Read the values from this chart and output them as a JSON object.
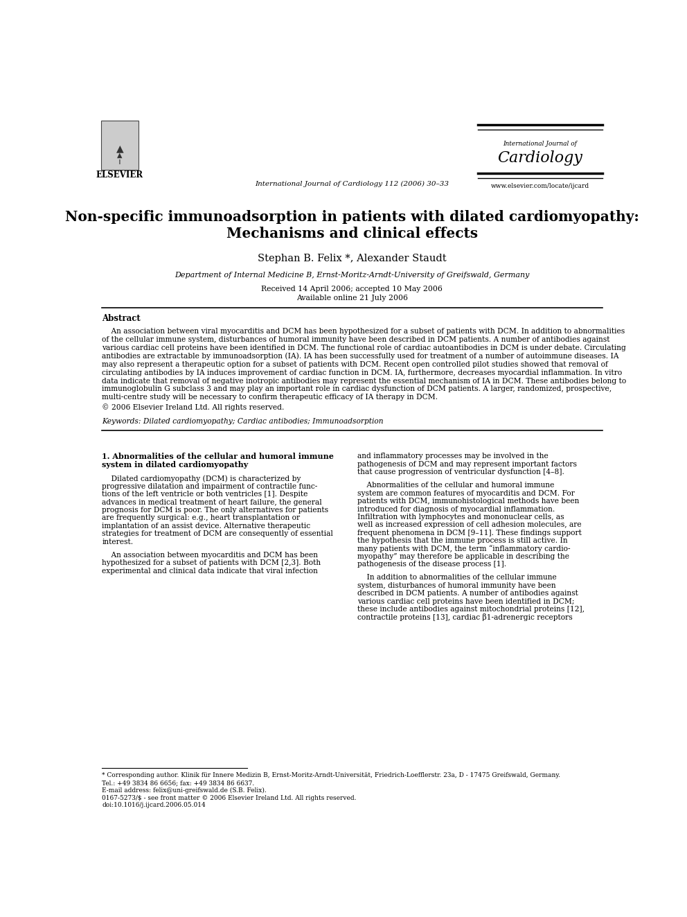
{
  "bg_color": "#ffffff",
  "page_width": 9.92,
  "page_height": 13.23,
  "header": {
    "elsevier_logo_text": "ELSEVIER",
    "journal_center_text": "International Journal of Cardiology 112 (2006) 30–33",
    "journal_name_small": "International Journal of",
    "journal_name_large": "Cardiology",
    "journal_url": "www.elsevier.com/locate/ijcard"
  },
  "title_line1": "Non-specific immunoadsorption in patients with dilated cardiomyopathy:",
  "title_line2": "Mechanisms and clinical effects",
  "authors": "Stephan B. Felix *, Alexander Staudt",
  "affiliation": "Department of Internal Medicine B, Ernst-Moritz-Arndt-University of Greifswald, Germany",
  "received": "Received 14 April 2006; accepted 10 May 2006",
  "available": "Available online 21 July 2006",
  "abstract_title": "Abstract",
  "copyright": "© 2006 Elsevier Ireland Ltd. All rights reserved.",
  "keywords_label": "Keywords:",
  "keywords_text": "Dilated cardiomyopathy; Cardiac antibodies; Immunoadsorption",
  "section1_title_line1": "1. Abnormalities of the cellular and humoral immune",
  "section1_title_line2": "system in dilated cardiomyopathy",
  "abstract_lines": [
    "    An association between viral myocarditis and DCM has been hypothesized for a subset of patients with DCM. In addition to abnormalities",
    "of the cellular immune system, disturbances of humoral immunity have been described in DCM patients. A number of antibodies against",
    "various cardiac cell proteins have been identified in DCM. The functional role of cardiac autoantibodies in DCM is under debate. Circulating",
    "antibodies are extractable by immunoadsorption (IA). IA has been successfully used for treatment of a number of autoimmune diseases. IA",
    "may also represent a therapeutic option for a subset of patients with DCM. Recent open controlled pilot studies showed that removal of",
    "circulating antibodies by IA induces improvement of cardiac function in DCM. IA, furthermore, decreases myocardial inflammation. In vitro",
    "data indicate that removal of negative inotropic antibodies may represent the essential mechanism of IA in DCM. These antibodies belong to",
    "immunoglobulin G subclass 3 and may play an important role in cardiac dysfunction of DCM patients. A larger, randomized, prospective,",
    "multi-centre study will be necessary to confirm therapeutic efficacy of IA therapy in DCM."
  ],
  "col1p1_lines": [
    "    Dilated cardiomyopathy (DCM) is characterized by",
    "progressive dilatation and impairment of contractile func-",
    "tions of the left ventricle or both ventricles [1]. Despite",
    "advances in medical treatment of heart failure, the general",
    "prognosis for DCM is poor. The only alternatives for patients",
    "are frequently surgical: e.g., heart transplantation or",
    "implantation of an assist device. Alternative therapeutic",
    "strategies for treatment of DCM are consequently of essential",
    "interest."
  ],
  "col1p2_lines": [
    "    An association between myocarditis and DCM has been",
    "hypothesized for a subset of patients with DCM [2,3]. Both",
    "experimental and clinical data indicate that viral infection"
  ],
  "col2p1_lines": [
    "and inflammatory processes may be involved in the",
    "pathogenesis of DCM and may represent important factors",
    "that cause progression of ventricular dysfunction [4–8]."
  ],
  "col2p2_lines": [
    "    Abnormalities of the cellular and humoral immune",
    "system are common features of myocarditis and DCM. For",
    "patients with DCM, immunohistological methods have been",
    "introduced for diagnosis of myocardial inflammation.",
    "Infiltration with lymphocytes and mononuclear cells, as",
    "well as increased expression of cell adhesion molecules, are",
    "frequent phenomena in DCM [9–11]. These findings support",
    "the hypothesis that the immune process is still active. In",
    "many patients with DCM, the term “inflammatory cardio-",
    "myopathy” may therefore be applicable in describing the",
    "pathogenesis of the disease process [1]."
  ],
  "col2p3_lines": [
    "    In addition to abnormalities of the cellular immune",
    "system, disturbances of humoral immunity have been",
    "described in DCM patients. A number of antibodies against",
    "various cardiac cell proteins have been identified in DCM;",
    "these include antibodies against mitochondrial proteins [12],",
    "contractile proteins [13], cardiac β1-adrenergic receptors"
  ],
  "footnote_star": "* Corresponding author. Klinik für Innere Medizin B, Ernst-Moritz-Arndt-Universität, Friedrich-Loefflerstr. 23a, D - 17475 Greifswald, Germany.",
  "footnote_star2": "Tel.: +49 3834 86 6656; fax: +49 3834 86 6637.",
  "footnote_email": "E-mail address: felix@uni-greifswald.de (S.B. Felix).",
  "footnote_issn": "0167-5273/$ - see front matter © 2006 Elsevier Ireland Ltd. All rights reserved.",
  "footnote_doi": "doi:10.1016/j.ijcard.2006.05.014"
}
